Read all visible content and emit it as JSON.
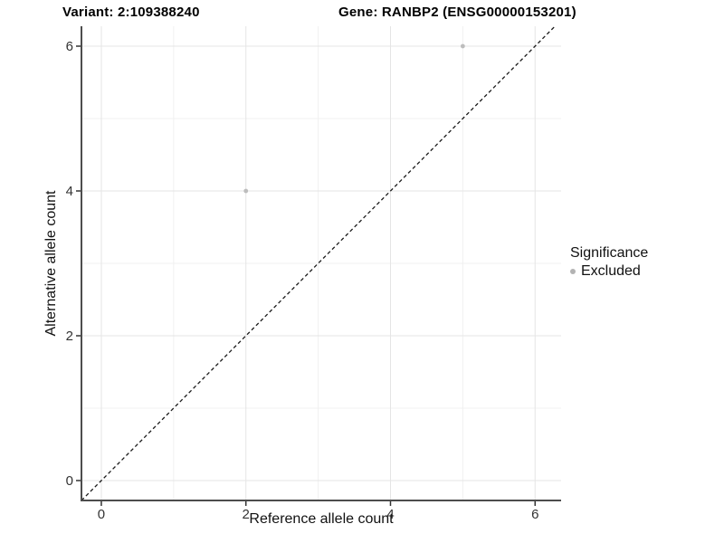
{
  "chart_data": {
    "type": "scatter",
    "title_left": "Variant: 2:109388240",
    "title_right": "Gene: RANBP2 (ENSG00000153201)",
    "xlabel": "Reference allele count",
    "ylabel": "Alternative allele count",
    "xlim": [
      -0.275,
      6.36
    ],
    "ylim": [
      -0.275,
      6.275
    ],
    "x_ticks": [
      0,
      2,
      4,
      6
    ],
    "y_ticks": [
      0,
      2,
      4,
      6
    ],
    "x_minor_ticks": [
      1,
      3,
      5
    ],
    "y_minor_ticks": [
      1,
      3,
      5
    ],
    "grid": "on",
    "identity_line": {
      "equation": "y = x",
      "style": "dashed",
      "color": "#1a1a1a"
    },
    "series": [
      {
        "name": "Excluded",
        "color": "#bdbdbd",
        "points": [
          {
            "x": 2,
            "y": 4
          },
          {
            "x": 5,
            "y": 6
          }
        ]
      }
    ],
    "legend": {
      "title": "Significance",
      "position": "right",
      "items": [
        {
          "label": "Excluded",
          "color": "#b3b3b3"
        }
      ]
    }
  },
  "colors": {
    "background": "#ffffff",
    "axis_line": "#4d4d4d",
    "tick_mark": "#333333",
    "tick_label": "#333333",
    "grid_major": "#e5e5e5",
    "grid_minor": "#f0f0f0"
  }
}
